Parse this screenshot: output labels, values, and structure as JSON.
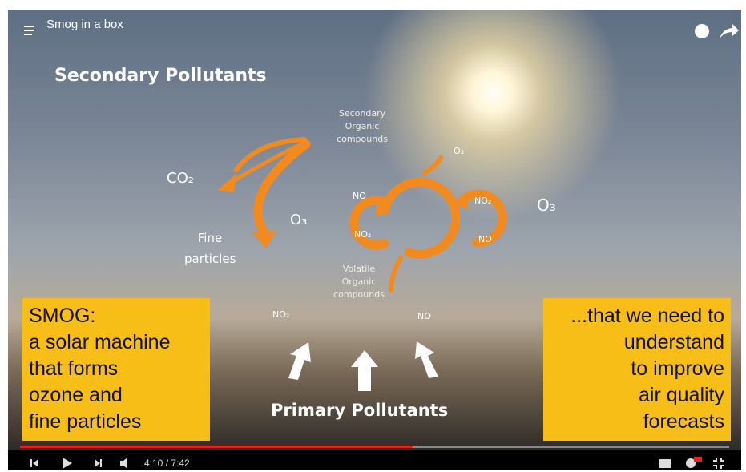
{
  "header": {
    "title": "Smog in a box"
  },
  "slide": {
    "title": "Secondary Pollutants",
    "soc": [
      "Secondary",
      "Organic",
      "compounds"
    ],
    "co2": "CO₂",
    "fine": [
      "Fine",
      "particles"
    ],
    "o3_left": "O₃",
    "no_a": "NO",
    "no2_a": "NO₂",
    "o3_small": "O₃",
    "no2_b": "NO₂",
    "no_b": "NO",
    "o3_right": "O₃",
    "voc": [
      "Volatile",
      "Organic",
      "compounds"
    ],
    "no2_c": "NO₂",
    "no_c": "NO",
    "primary": "Primary Pollutants"
  },
  "left_box": {
    "lines": [
      "SMOG:",
      "a solar machine",
      "that forms",
      "ozone and",
      "fine particles"
    ]
  },
  "right_box": {
    "lines": [
      "...that we need to",
      "understand",
      "to improve",
      "air quality",
      "forecasts"
    ]
  },
  "player": {
    "time": "4:10 / 7:42"
  }
}
